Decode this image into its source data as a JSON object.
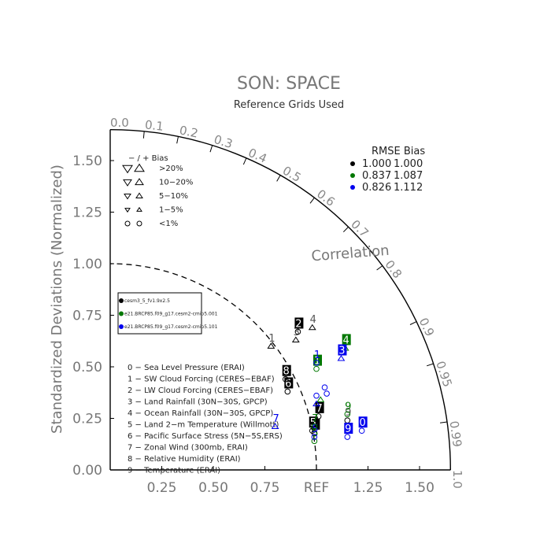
{
  "chart_data": {
    "type": "scatter",
    "title": "SON: SPACE",
    "subtitle": "Reference Grids Used",
    "ylabel": "Standardized Deviations (Normalized)",
    "correlation_label": "Correlation",
    "ref_label": "REF",
    "xlim": [
      0,
      1.65
    ],
    "ylim": [
      0,
      1.65
    ],
    "x_ticks": [
      "0.25",
      "0.50",
      "0.75",
      "1.25",
      "1.50"
    ],
    "x_tick_values": [
      0.25,
      0.5,
      0.75,
      1.25,
      1.5
    ],
    "y_ticks": [
      "0.00",
      "0.25",
      "0.50",
      "0.75",
      "1.00",
      "1.25",
      "1.50"
    ],
    "y_tick_values": [
      0,
      0.25,
      0.5,
      0.75,
      1.0,
      1.25,
      1.5
    ],
    "corr_ticks": [
      "0.0",
      "0.1",
      "0.2",
      "0.3",
      "0.4",
      "0.5",
      "0.6",
      "0.7",
      "0.8",
      "0.9",
      "0.95",
      "0.99",
      "1.0"
    ],
    "corr_tick_values": [
      0.0,
      0.1,
      0.2,
      0.3,
      0.4,
      0.5,
      0.6,
      0.7,
      0.8,
      0.9,
      0.95,
      0.99,
      1.0
    ],
    "reference_arc": 1.0,
    "bias_legend": {
      "header": "−  /  +      Bias",
      "rows": [
        ">20%",
        "10−20%",
        "5−10%",
        "1−5%",
        "<1%"
      ]
    },
    "rmse_header": "RMSE  Bias",
    "series": [
      {
        "name": "cesm3_5_fv1.9x2.5",
        "color": "#000000",
        "rmse": "1.000",
        "bias": "1.000"
      },
      {
        "name": "e21.BRCP85.f09_g17.cesm2-cmip5.001",
        "color": "#007700",
        "rmse": "0.837",
        "bias": "1.087"
      },
      {
        "name": "e21.BRCP85.f09_g17.cesm2-cmip5.101",
        "color": "#0000ee",
        "rmse": "0.826",
        "bias": "1.112"
      }
    ],
    "variables": [
      "0 − Sea Level Pressure (ERAI)",
      "1 − SW Cloud Forcing (CERES−EBAF)",
      "2 − LW Cloud Forcing (CERES−EBAF)",
      "3 − Land Rainfall (30N−30S, GPCP)",
      "4 − Ocean Rainfall (30N−30S, GPCP)",
      "5 − Land 2−m Temperature (Willmott)",
      "6 − Pacific Surface Stress (5N−5S,ERS)",
      "7 − Zonal Wind (300mb, ERAI)",
      "8 − Relative Humidity (ERAI)",
      "9 − Temperature (ERAI)"
    ],
    "points": [
      {
        "label": "0",
        "series": 0,
        "x": 0.99,
        "y": 0.18,
        "marker": "circle",
        "box": true
      },
      {
        "label": "5",
        "series": 0,
        "x": 0.98,
        "y": 0.19,
        "marker": "circle",
        "box": true
      },
      {
        "label": "5",
        "series": 1,
        "x": 0.99,
        "y": 0.14,
        "marker": "circle",
        "box": false
      },
      {
        "label": "5",
        "series": 2,
        "x": 0.99,
        "y": 0.16,
        "marker": "circle",
        "box": false
      },
      {
        "label": "7",
        "series": 0,
        "x": 1.01,
        "y": 0.26,
        "marker": "circle",
        "box": true
      },
      {
        "label": "7",
        "series": 1,
        "x": 0.99,
        "y": 0.21,
        "marker": "circle",
        "box": false
      },
      {
        "label": "7",
        "series": 2,
        "x": 0.8,
        "y": 0.21,
        "marker": "tri-up",
        "box": false
      },
      {
        "label": "6",
        "series": 0,
        "x": 0.86,
        "y": 0.38,
        "marker": "circle",
        "box": true
      },
      {
        "label": "8",
        "series": 0,
        "x": 0.85,
        "y": 0.44,
        "marker": "circle",
        "box": true
      },
      {
        "label": "1",
        "series": 0,
        "x": 0.78,
        "y": 0.6,
        "marker": "tri-up",
        "box": false
      },
      {
        "label": "3",
        "series": 0,
        "x": 0.9,
        "y": 0.63,
        "marker": "tri-up",
        "box": false
      },
      {
        "label": "2",
        "series": 0,
        "x": 0.91,
        "y": 0.67,
        "marker": "circle",
        "box": true
      },
      {
        "label": "4",
        "series": 0,
        "x": 0.98,
        "y": 0.69,
        "marker": "tri-up",
        "box": false
      },
      {
        "label": "1",
        "series": 1,
        "x": 1.0,
        "y": 0.49,
        "marker": "circle",
        "box": true
      },
      {
        "label": "1",
        "series": 2,
        "x": 1.0,
        "y": 0.52,
        "marker": "circle",
        "box": false
      },
      {
        "label": "4",
        "series": 1,
        "x": 1.14,
        "y": 0.59,
        "marker": "tri-up",
        "box": true
      },
      {
        "label": "3",
        "series": 2,
        "x": 1.12,
        "y": 0.54,
        "marker": "tri-up",
        "box": true
      },
      {
        "label": "",
        "series": 1,
        "x": 1.02,
        "y": 0.34,
        "marker": "tri-up",
        "box": false
      },
      {
        "label": "",
        "series": 2,
        "x": 1.0,
        "y": 0.32,
        "marker": "tri-up",
        "box": false
      },
      {
        "label": "",
        "series": 2,
        "x": 1.04,
        "y": 0.4,
        "marker": "circle",
        "box": false
      },
      {
        "label": "",
        "series": 2,
        "x": 1.05,
        "y": 0.37,
        "marker": "circle",
        "box": false
      },
      {
        "label": "",
        "series": 2,
        "x": 1.0,
        "y": 0.36,
        "marker": "circle",
        "box": false
      },
      {
        "label": "9",
        "series": 0,
        "x": 1.15,
        "y": 0.24,
        "marker": "circle",
        "box": false
      },
      {
        "label": "9",
        "series": 1,
        "x": 1.15,
        "y": 0.27,
        "marker": "circle",
        "box": false
      },
      {
        "label": "9",
        "series": 2,
        "x": 1.15,
        "y": 0.16,
        "marker": "circle",
        "box": true
      },
      {
        "label": "0",
        "series": 2,
        "x": 1.22,
        "y": 0.19,
        "marker": "circle",
        "box": true
      }
    ]
  }
}
